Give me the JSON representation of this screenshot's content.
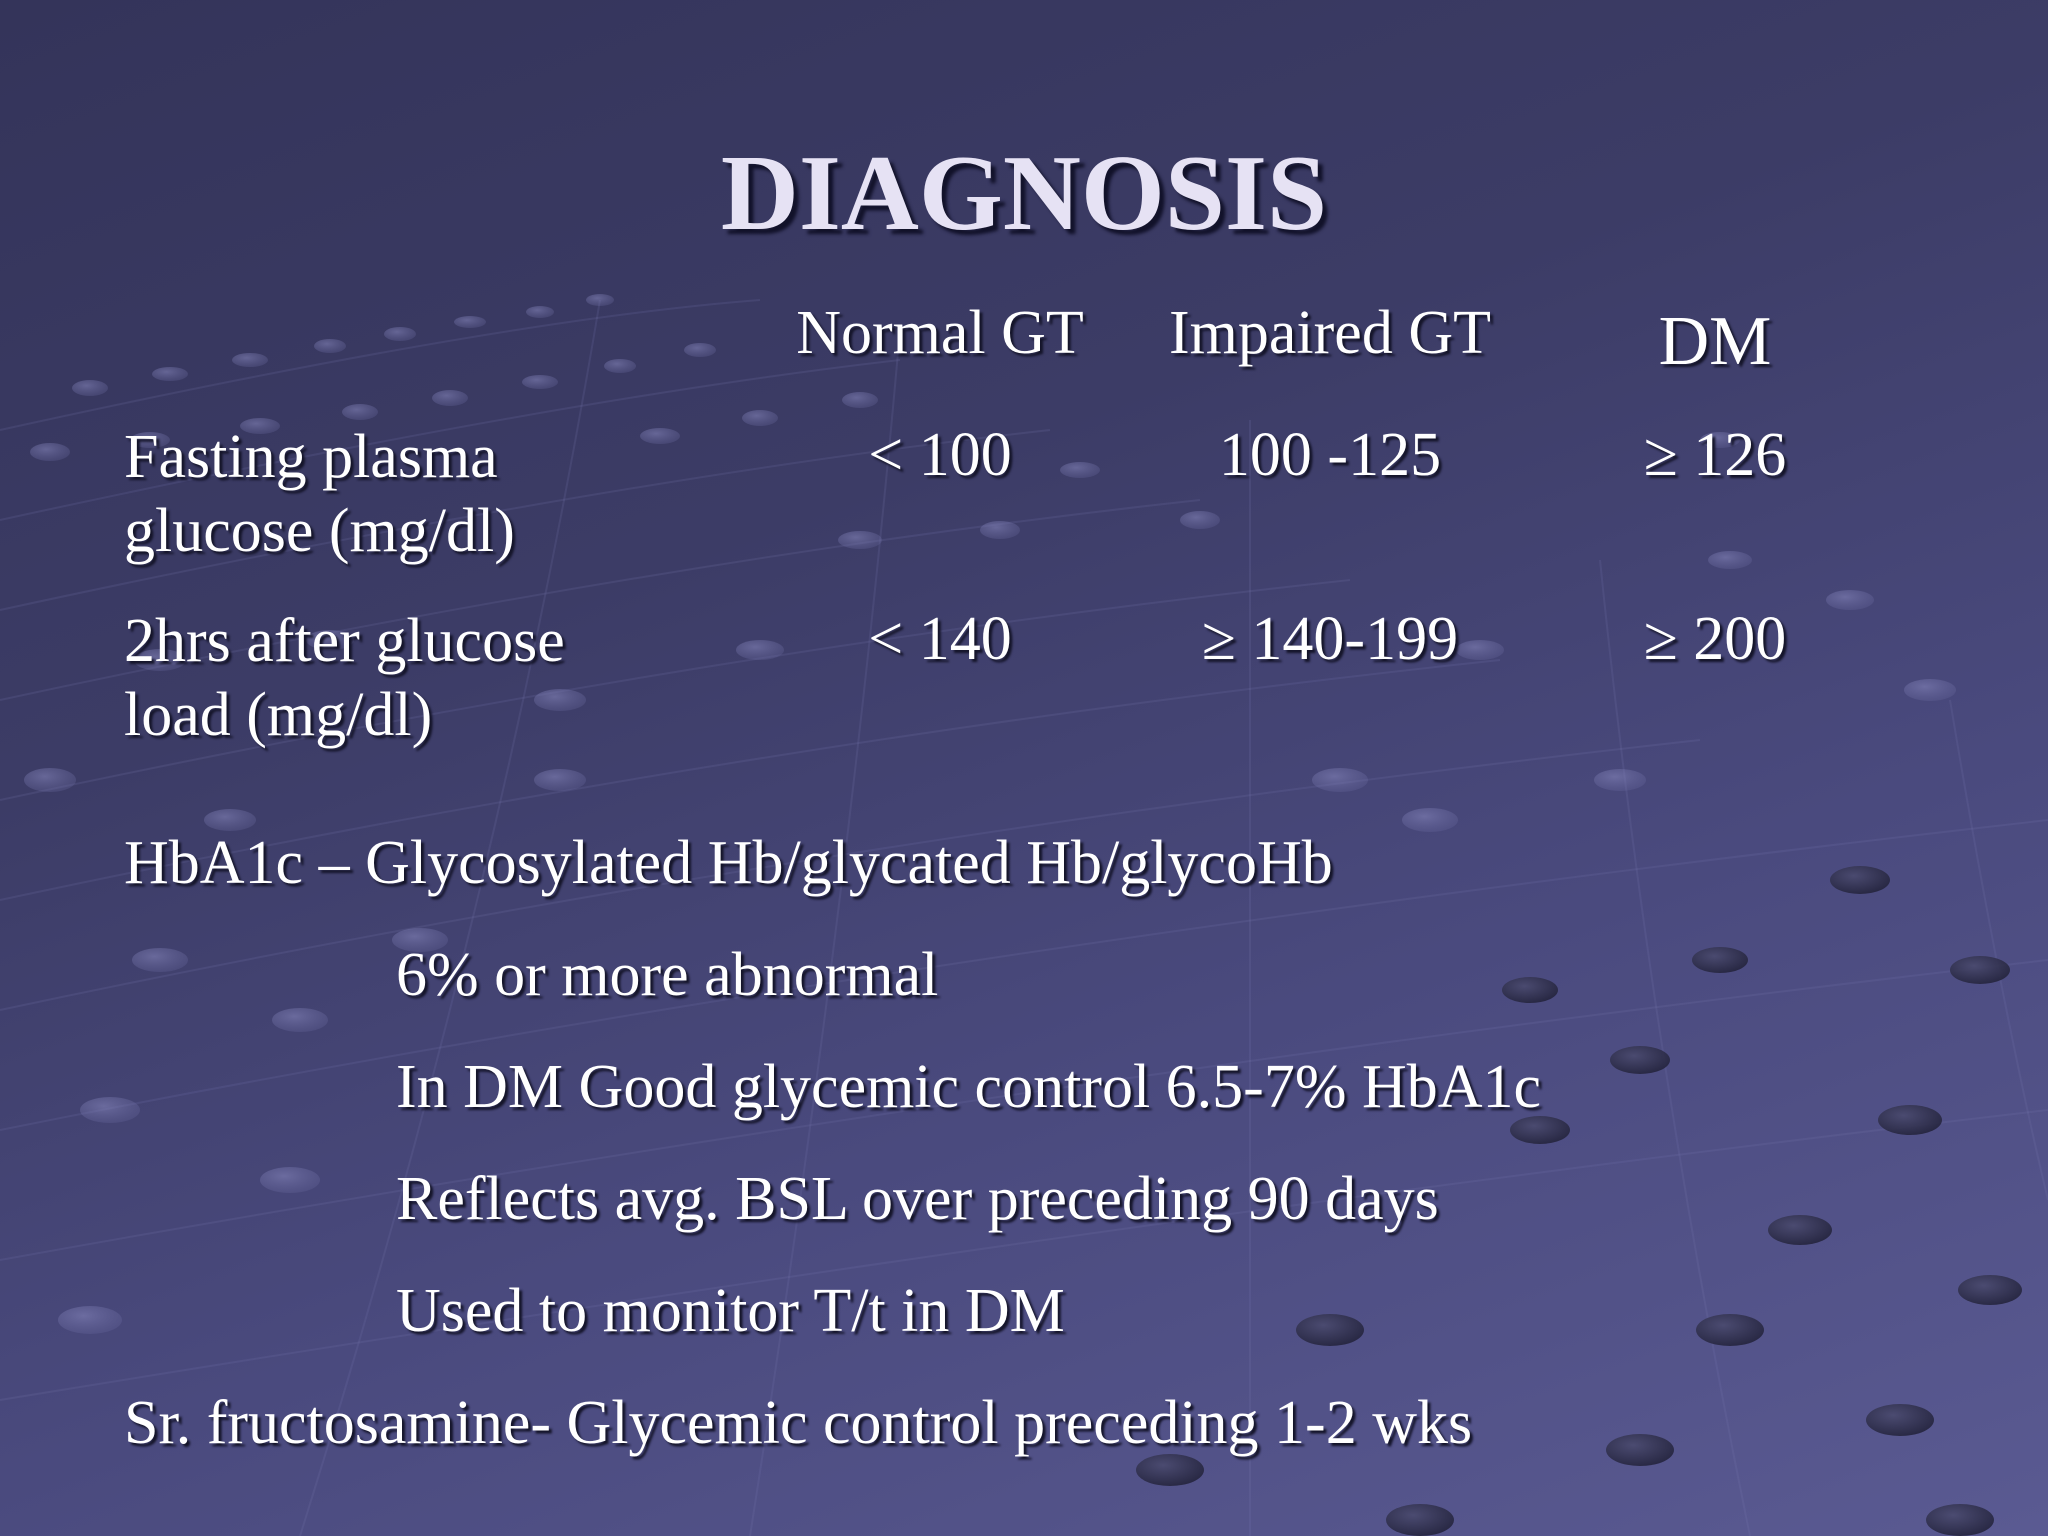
{
  "slide": {
    "title": "DIAGNOSIS",
    "table": {
      "columns": [
        "Normal GT",
        "Impaired GT",
        "DM"
      ],
      "rows": [
        {
          "label_lines": [
            "Fasting plasma",
            "glucose (mg/dl)"
          ],
          "values": [
            "< 100",
            "100 -125",
            "≥ 126"
          ]
        },
        {
          "label_lines": [
            "2hrs after glucose",
            "load (mg/dl)"
          ],
          "values": [
            "< 140",
            "≥ 140-199",
            "≥ 200"
          ]
        }
      ]
    },
    "hba1c": {
      "heading": "HbA1c – Glycosylated Hb/glycated Hb/glycoHb",
      "points": [
        "6% or more abnormal",
        "In DM Good glycemic control 6.5-7% HbA1c",
        "Reflects avg. BSL over preceding 90 days",
        "Used to monitor T/t in DM"
      ]
    },
    "fructosamine": "Sr. fructosamine- Glycemic control preceding 1-2 wks"
  },
  "colors": {
    "background": "#3c3c66",
    "text": "#ffffff",
    "title": "#e6e2f4"
  }
}
